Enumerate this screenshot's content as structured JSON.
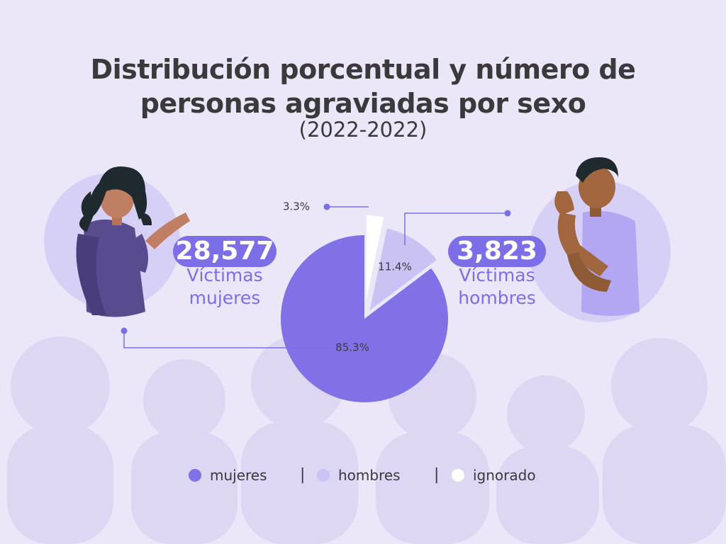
{
  "title_line_1": "Distribución porcentual y número de",
  "title_line_2": "personas agraviadas por sexo",
  "subtitle": "(2022-2022)",
  "women_callout": {
    "count": "28,577",
    "caption_1": "Víctimas",
    "caption_2": "mujeres"
  },
  "men_callout": {
    "count": "3,823",
    "caption_1": "Víctimas",
    "caption_2": "hombres"
  },
  "colors": {
    "background": "#ebe7f9",
    "mujeres": "#8071e6",
    "hombres": "#c9c2f3",
    "ignorado": "#ffffff",
    "accent": "#7c6ee6",
    "text": "#3a3a3c"
  },
  "legend": [
    {
      "label": "mujeres",
      "color": "#8071e6"
    },
    {
      "label": "hombres",
      "color": "#c9c2f3"
    },
    {
      "label": "ignorado",
      "color": "#ffffff"
    }
  ],
  "legend_separator": "|",
  "chart_data": {
    "type": "pie",
    "title": "Distribución porcentual y número de personas agraviadas por sexo",
    "subtitle": "(2022-2022)",
    "slices": [
      {
        "label": "mujeres",
        "value": 85.3,
        "value_label": "85.3%",
        "count": 28577,
        "color": "#8071e6"
      },
      {
        "label": "hombres",
        "value": 11.4,
        "value_label": "11.4%",
        "count": 3823,
        "color": "#c9c2f3"
      },
      {
        "label": "ignorado",
        "value": 3.3,
        "value_label": "3.3%",
        "color": "#ffffff"
      }
    ],
    "legend_position": "bottom"
  }
}
